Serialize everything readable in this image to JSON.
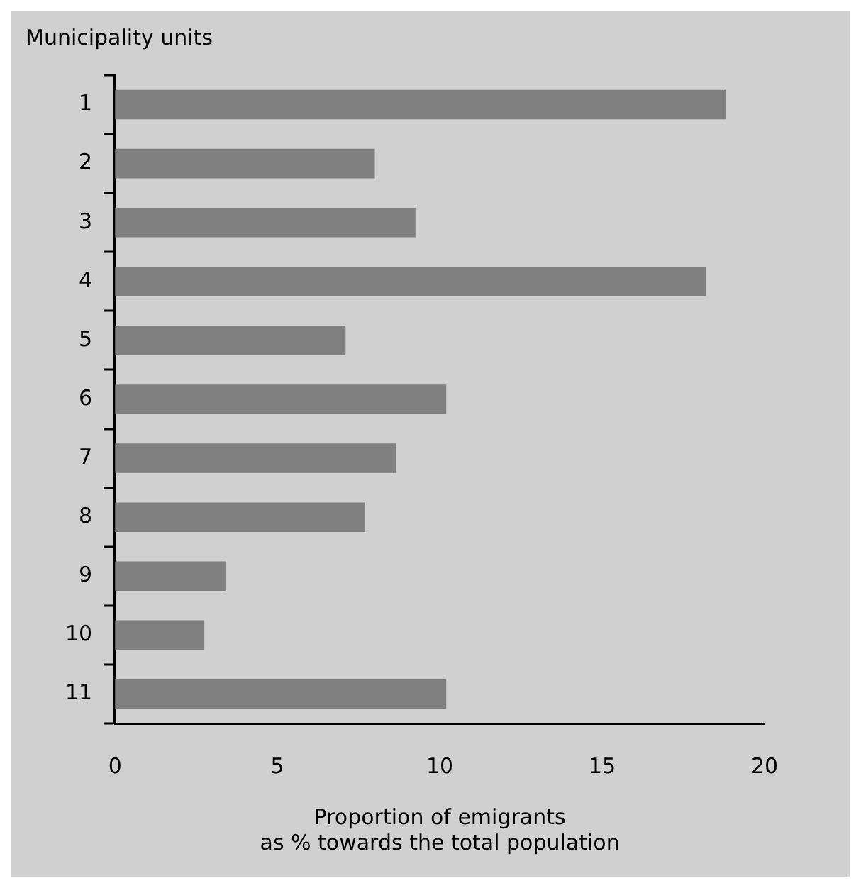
{
  "chart_data": {
    "type": "bar",
    "orientation": "horizontal",
    "ylabel": "Municipality units",
    "xlabel": "Proportion of emigrants\nas % towards the total population",
    "categories": [
      "1",
      "2",
      "3",
      "4",
      "5",
      "6",
      "7",
      "8",
      "9",
      "10",
      "11"
    ],
    "values": [
      18.8,
      8.0,
      9.25,
      18.2,
      7.1,
      10.2,
      8.65,
      7.7,
      3.4,
      2.75,
      10.2
    ],
    "color": "#808080",
    "xlim": [
      0,
      20
    ],
    "xticks": [
      0,
      5,
      10,
      15,
      20
    ],
    "grid": false,
    "legend": false
  }
}
